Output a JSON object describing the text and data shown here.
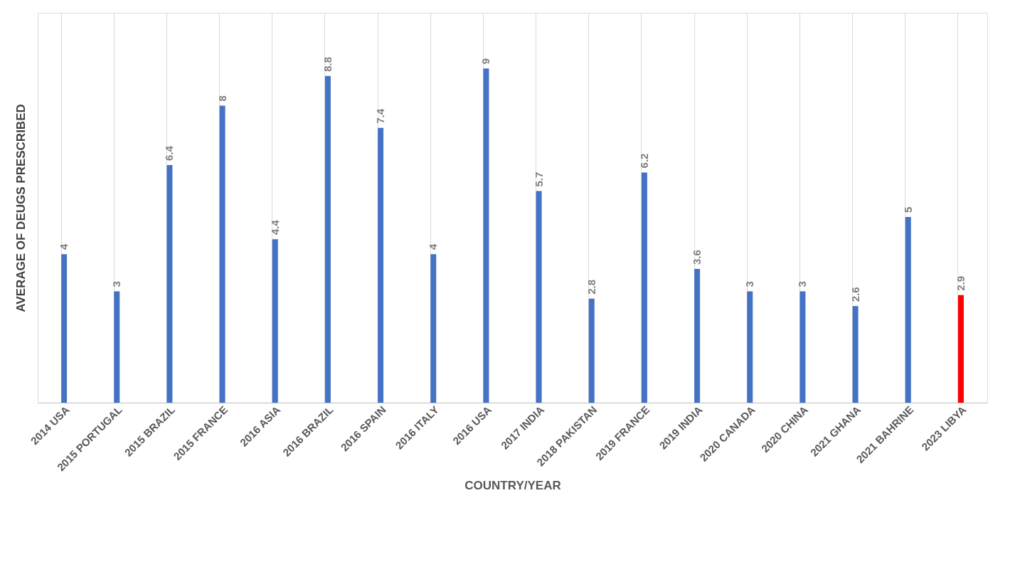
{
  "chart_data": {
    "type": "bar",
    "xlabel": "COUNTRY/YEAR",
    "ylabel": "AVERAGE OF DEUGS PRESCRIBED",
    "categories": [
      "2014 USA",
      "2015 PORTUGAL",
      "2015 BRAZIL",
      "2015 FRANCE",
      "2016 ASIA",
      "2016 BRAZIL",
      "2016 SPAIN",
      "2016 ITALY",
      "2016 USA",
      "2017 INDIA",
      "2018 PAKISTAN",
      "2019 FRANCE",
      "2019 INDIA",
      "2020 CANADA",
      "2020 CHINA",
      "2021 GHANA",
      "2021 BAHRINE",
      "2023 LIBYA"
    ],
    "values": [
      4,
      3,
      6.4,
      8,
      4.4,
      8.8,
      7.4,
      4,
      9,
      5.7,
      2.8,
      6.2,
      3.6,
      3,
      3,
      2.6,
      5,
      2.9
    ],
    "colors": [
      "#4472c4",
      "#4472c4",
      "#4472c4",
      "#4472c4",
      "#4472c4",
      "#4472c4",
      "#4472c4",
      "#4472c4",
      "#4472c4",
      "#4472c4",
      "#4472c4",
      "#4472c4",
      "#4472c4",
      "#4472c4",
      "#4472c4",
      "#4472c4",
      "#4472c4",
      "#ff0000"
    ],
    "ylim": [
      0,
      10.5
    ],
    "data_labels": true,
    "grid": "x"
  }
}
